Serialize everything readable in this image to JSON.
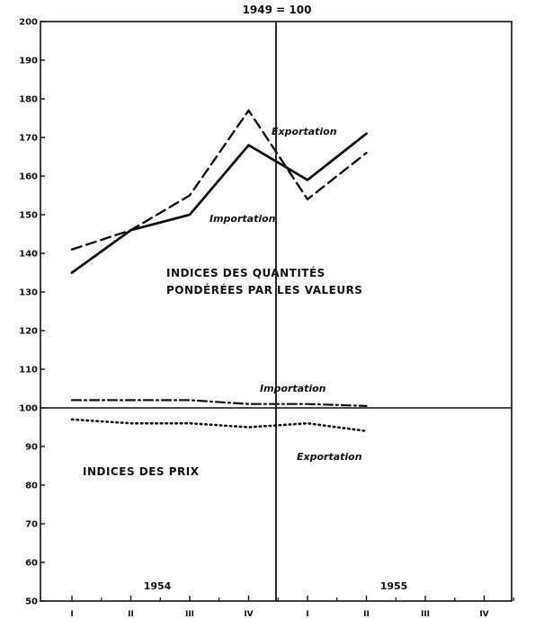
{
  "chart_data": {
    "type": "line",
    "title": "1949 = 100",
    "ylim": [
      50,
      200
    ],
    "yticks": [
      50,
      60,
      70,
      80,
      90,
      100,
      110,
      120,
      130,
      140,
      150,
      160,
      170,
      180,
      190,
      200
    ],
    "x": [
      "I",
      "II",
      "III",
      "IV",
      "I",
      "II",
      "III",
      "IV"
    ],
    "years": [
      "1954",
      "1955"
    ],
    "grid": false,
    "annotations": {
      "quantities": [
        "INDICES DES QUANTITÉS",
        "PONDÉRÉES PAR LES VALEURS"
      ],
      "prices": "INDICES DES PRIX"
    },
    "series": [
      {
        "name": "Exportation",
        "group": "quantities",
        "style": "dashed",
        "values": [
          141,
          146,
          155,
          177,
          154,
          166,
          null,
          null
        ]
      },
      {
        "name": "Importation",
        "group": "quantities",
        "style": "solid",
        "values": [
          135,
          146,
          150,
          168,
          159,
          171,
          null,
          null
        ]
      },
      {
        "name": "Importation",
        "group": "prices",
        "style": "dash-dot",
        "values": [
          102,
          102,
          102,
          101,
          101,
          100.5,
          null,
          null
        ]
      },
      {
        "name": "Exportation",
        "group": "prices",
        "style": "dotted",
        "values": [
          97,
          96,
          96,
          95,
          96,
          94,
          null,
          null
        ]
      }
    ]
  }
}
